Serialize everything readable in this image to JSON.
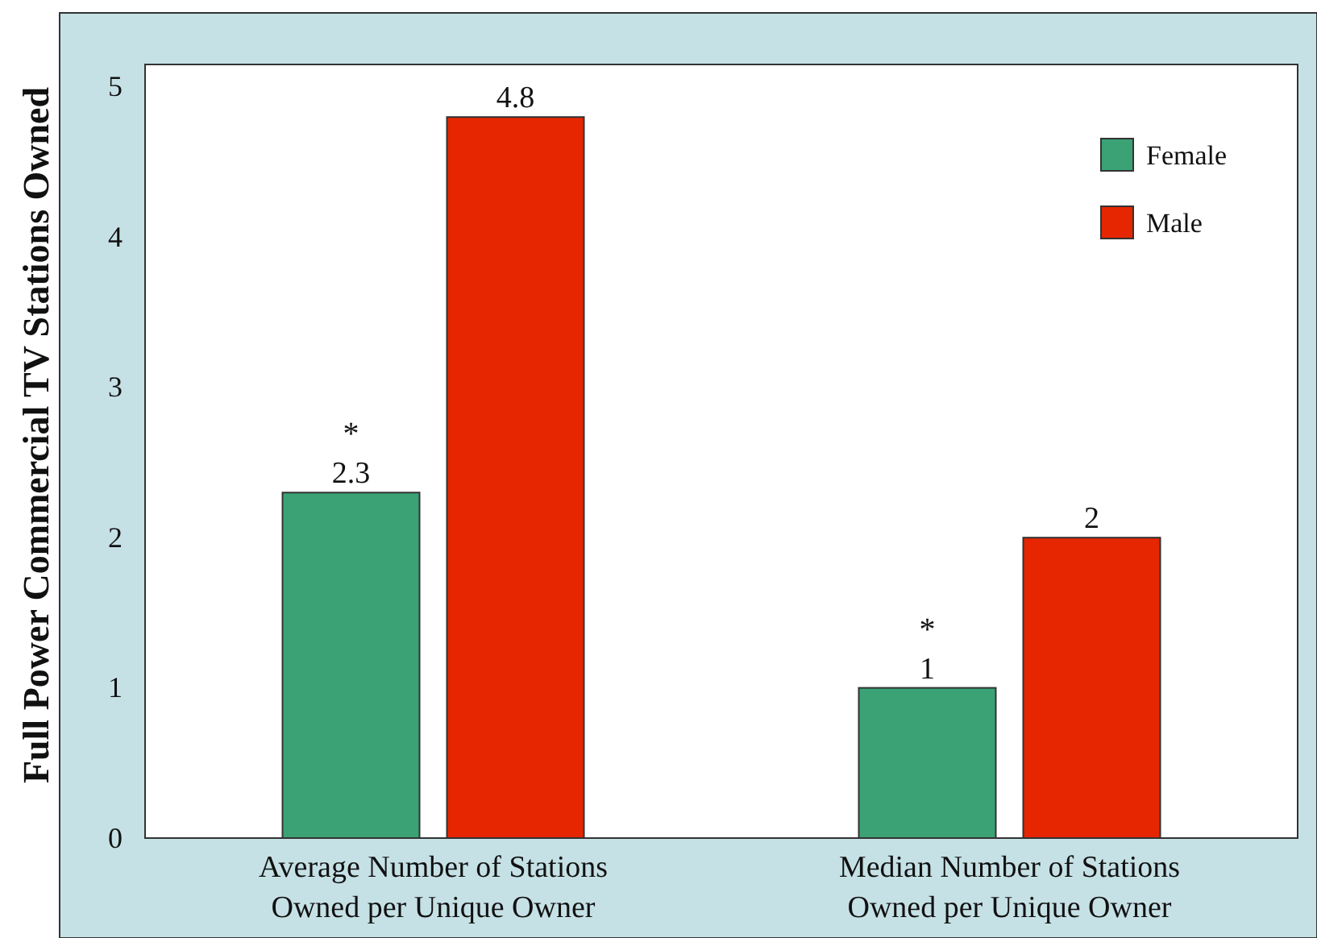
{
  "chart_data": {
    "type": "bar",
    "ylabel": "Full Power Commercial TV Stations Owned",
    "categories": [
      "Average Number of Stations\nOwned per Unique Owner",
      "Median Number of Stations\nOwned per Unique Owner"
    ],
    "series": [
      {
        "name": "Female",
        "color": "#3aa275",
        "values": [
          2.3,
          1
        ]
      },
      {
        "name": "Male",
        "color": "#e52600",
        "values": [
          4.8,
          2
        ]
      }
    ],
    "ylim": [
      0,
      5.15
    ],
    "yticks": [
      0,
      1,
      2,
      3,
      4,
      5
    ],
    "data_labels": true,
    "grid": false,
    "legend": "top right",
    "annotations": [
      "*",
      "*"
    ]
  }
}
